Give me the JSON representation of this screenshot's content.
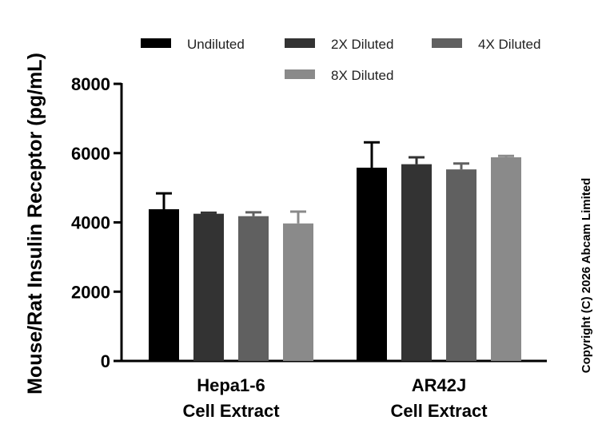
{
  "chart_data": {
    "type": "bar",
    "ylabel": "Mouse/Rat Insulin Receptor (pg/mL)",
    "ylim": [
      0,
      8000
    ],
    "yticks": [
      "0",
      "2000",
      "4000",
      "6000",
      "8000"
    ],
    "categories": [
      {
        "line1": "Hepa1-6",
        "line2": "Cell Extract"
      },
      {
        "line1": "AR42J",
        "line2": "Cell Extract"
      }
    ],
    "series": [
      {
        "name": "Undiluted",
        "color": "#000000",
        "values": [
          4380,
          5580
        ],
        "errors": [
          460,
          730
        ]
      },
      {
        "name": "2X Diluted",
        "color": "#333333",
        "values": [
          4250,
          5680
        ],
        "errors": [
          30,
          200
        ]
      },
      {
        "name": "4X Diluted",
        "color": "#606060",
        "values": [
          4180,
          5530
        ],
        "errors": [
          110,
          170
        ]
      },
      {
        "name": "8X Diluted",
        "color": "#8a8a8a",
        "values": [
          3970,
          5880
        ],
        "errors": [
          340,
          40
        ]
      }
    ],
    "legend_position": "top",
    "grid": false
  },
  "copyright": "Copyright (C) 2026 Abcam Limited"
}
